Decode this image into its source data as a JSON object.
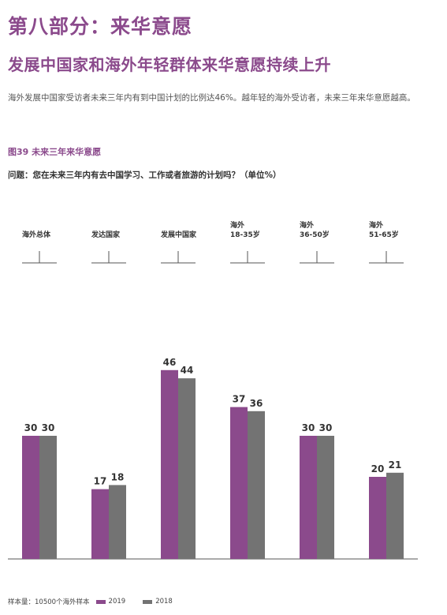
{
  "section_title": "第八部分：来华意愿",
  "headline": "发展中国家和海外年轻群体来华意愿持续上升",
  "intro": "海外发展中国家受访者未来三年内有到中国计划的比例达46%。越年轻的海外受访者，未来三年来华意愿越高。",
  "figure_label": "图39  未来三年来华意愿",
  "question": "问题：您在未来三年内有去中国学习、工作或者旅游的计划吗？（单位%）",
  "footer": {
    "sample": "样本量：10500个海外样本",
    "legend": [
      {
        "label": "2019",
        "color": "#8b4a8c"
      },
      {
        "label": "2018",
        "color": "#737373"
      }
    ]
  },
  "chart_data": {
    "type": "bar",
    "title": "",
    "xlabel": "",
    "ylabel": "",
    "ylim": [
      0,
      50
    ],
    "categories": [
      [
        "海外总体"
      ],
      [
        "发达国家"
      ],
      [
        "发展中国家"
      ],
      [
        "海外",
        "18-35岁"
      ],
      [
        "海外",
        "36-50岁"
      ],
      [
        "海外",
        "51-65岁"
      ]
    ],
    "series": [
      {
        "name": "2019",
        "color": "#8b4a8c",
        "values": [
          30,
          17,
          46,
          37,
          30,
          20
        ]
      },
      {
        "name": "2018",
        "color": "#737373",
        "values": [
          30,
          18,
          44,
          36,
          30,
          21
        ]
      }
    ]
  }
}
